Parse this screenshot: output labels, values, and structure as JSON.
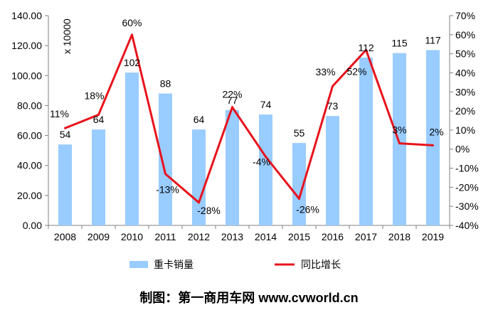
{
  "chart_data": {
    "type": "bar",
    "categories": [
      "2008",
      "2009",
      "2010",
      "2011",
      "2012",
      "2013",
      "2014",
      "2015",
      "2016",
      "2017",
      "2018",
      "2019"
    ],
    "series": [
      {
        "name": "重卡销量",
        "type": "bar",
        "axis": "left",
        "color": "#99CCFF",
        "values": [
          54,
          64,
          102,
          88,
          64,
          77,
          74,
          55,
          73,
          112,
          115,
          117
        ],
        "labels": [
          "54",
          "64",
          "102",
          "88",
          "64",
          "77",
          "74",
          "55",
          "73",
          "112",
          "115",
          "117"
        ]
      },
      {
        "name": "同比增长",
        "type": "line",
        "axis": "right",
        "color": "#E8131C",
        "values": [
          11,
          18,
          60,
          -13,
          -28,
          22,
          -4,
          -26,
          33,
          52,
          3,
          2
        ],
        "labels": [
          "11%",
          "18%",
          "60%",
          "-13%",
          "-28%",
          "22%",
          "-4%",
          "-26%",
          "33%",
          "52%",
          "3%",
          "2%"
        ]
      }
    ],
    "ylim_left": [
      0,
      140
    ],
    "ylim_right": [
      -40,
      70
    ],
    "left_ticks": [
      "0.00",
      "20.00",
      "40.00",
      "60.00",
      "80.00",
      "100.00",
      "120.00",
      "140.00"
    ],
    "right_ticks": [
      "-40%",
      "-30%",
      "-20%",
      "-10%",
      "0%",
      "10%",
      "20%",
      "30%",
      "40%",
      "50%",
      "60%",
      "70%"
    ],
    "unit_label": "x 10000",
    "legend_position": "bottom",
    "grid": false
  },
  "credit": "制图：第一商用车网 www.cvworld.cn"
}
